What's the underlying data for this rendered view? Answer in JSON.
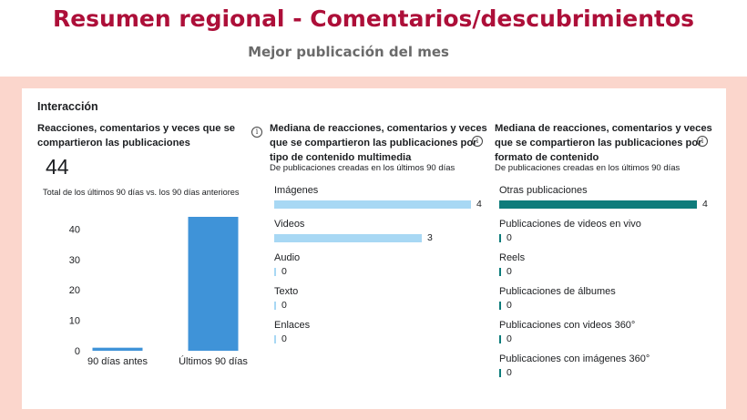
{
  "header": {
    "title": "Resumen regional - Comentarios/descubrimientos",
    "subtitle": "Mejor publicación del mes"
  },
  "colors": {
    "title": "#ad0f39",
    "panel_background": "#fbd6cc",
    "column_bar": "#3f93d8",
    "media_bar": "#a8d8f4",
    "format_bar": "#0e7c7b"
  },
  "card": {
    "title": "Interacción",
    "info_icon": "info-icon",
    "interactions": {
      "title_line1": "Reacciones, comentarios y veces que se",
      "title_line2": "compartieron las publicaciones",
      "total": "44",
      "note": "Total de los últimos 90 días vs. los 90 días anteriores"
    },
    "media_type": {
      "title_line1": "Mediana de reacciones, comentarios y veces",
      "title_line2": "que se compartieron las publicaciones por",
      "title_line3": "tipo de contenido multimedia",
      "subtitle": "De publicaciones creadas en los últimos 90 días"
    },
    "content_format": {
      "title_line1": "Mediana de reacciones, comentarios y veces",
      "title_line2": "que se compartieron las publicaciones por",
      "title_line3": "formato de contenido",
      "subtitle": "De publicaciones creadas en los últimos 90 días"
    }
  },
  "chart_data": [
    {
      "type": "bar",
      "categories": [
        "90 días antes",
        "Últimos 90 días"
      ],
      "values": [
        1,
        44
      ],
      "ylim": [
        0,
        44
      ],
      "yticks": [
        0,
        10,
        20,
        30,
        40
      ]
    },
    {
      "type": "bar",
      "orientation": "horizontal",
      "categories": [
        "Imágenes",
        "Videos",
        "Audio",
        "Texto",
        "Enlaces"
      ],
      "values": [
        4,
        3,
        0,
        0,
        0
      ],
      "xlim": [
        0,
        4
      ]
    },
    {
      "type": "bar",
      "orientation": "horizontal",
      "categories": [
        "Otras publicaciones",
        "Publicaciones de videos en vivo",
        "Reels",
        "Publicaciones de álbumes",
        "Publicaciones con videos 360°",
        "Publicaciones con imágenes 360°"
      ],
      "values": [
        4,
        0,
        0,
        0,
        0,
        0
      ],
      "xlim": [
        0,
        4
      ]
    }
  ]
}
